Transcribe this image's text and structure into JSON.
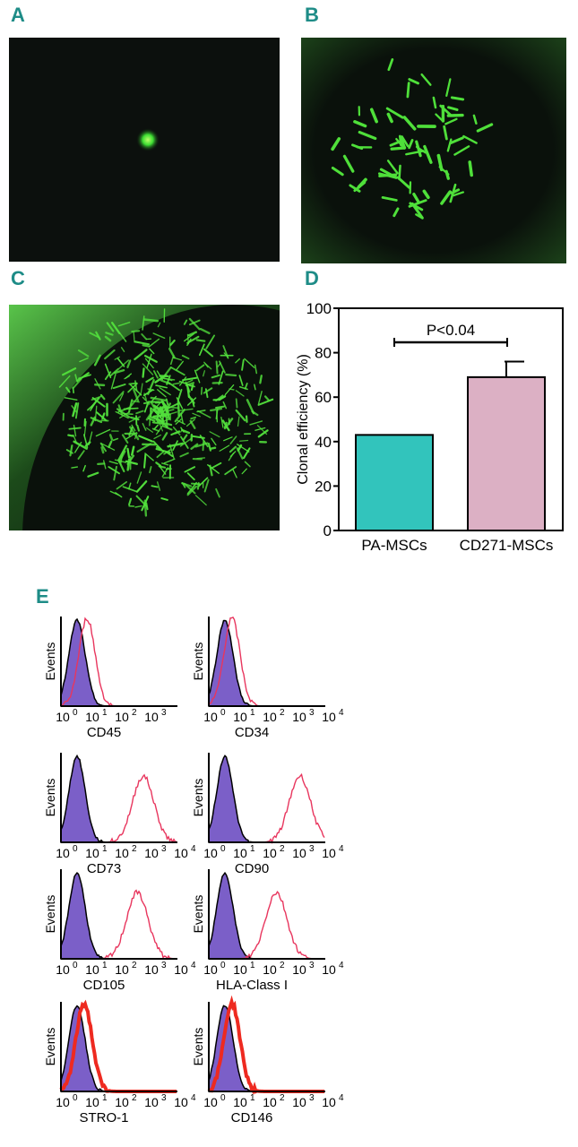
{
  "panels": {
    "a": {
      "label": "A"
    },
    "b": {
      "label": "B"
    },
    "c": {
      "label": "C"
    },
    "d": {
      "label": "D"
    },
    "e": {
      "label": "E"
    }
  },
  "colors": {
    "panel_label": "#1e8c87",
    "fluorescence": "#3cdc32",
    "bar_pa": "#32c4bc",
    "bar_cd271": "#dcb0c4",
    "isotype_fill": "#7b5fc8",
    "marker_line": "#e8365e",
    "marker_thick": "#ee2a20"
  },
  "chart_data": {
    "type": "bar",
    "categories": [
      "PA-MSCs",
      "CD271-MSCs"
    ],
    "values": [
      43,
      69
    ],
    "error": [
      0,
      7
    ],
    "ylabel": "Clonal efficiency (%)",
    "ylim": [
      0,
      100
    ],
    "yticks": [
      "0",
      "20",
      "40",
      "60",
      "80",
      "100"
    ],
    "annotation": "P<0.04"
  },
  "histograms": {
    "ylabel": "Events",
    "items": [
      {
        "marker": "CD45",
        "ticks": [
          "10",
          "10",
          "10",
          "10"
        ],
        "exps": [
          "0",
          "1",
          "2",
          "3"
        ],
        "peak_decade": 0.7,
        "positive": false
      },
      {
        "marker": "CD34",
        "ticks": [
          "10",
          "10",
          "10",
          "10",
          "10"
        ],
        "exps": [
          "0",
          "1",
          "2",
          "3",
          "4"
        ],
        "peak_decade": 0.6,
        "positive": false
      },
      {
        "marker": "CD73",
        "ticks": [
          "10",
          "10",
          "10",
          "10",
          "10"
        ],
        "exps": [
          "0",
          "1",
          "2",
          "3",
          "4"
        ],
        "peak_decade": 2.6,
        "positive": true
      },
      {
        "marker": "CD90",
        "ticks": [
          "10",
          "10",
          "10",
          "10",
          "10"
        ],
        "exps": [
          "0",
          "1",
          "2",
          "3",
          "4"
        ],
        "peak_decade": 2.9,
        "positive": true
      },
      {
        "marker": "CD105",
        "ticks": [
          "10",
          "10",
          "10",
          "10",
          "10"
        ],
        "exps": [
          "0",
          "1",
          "2",
          "3",
          "4"
        ],
        "peak_decade": 2.4,
        "positive": true
      },
      {
        "marker": "HLA-Class I",
        "ticks": [
          "10",
          "10",
          "10",
          "10",
          "10"
        ],
        "exps": [
          "0",
          "1",
          "2",
          "3",
          "4"
        ],
        "peak_decade": 2.1,
        "positive": true
      },
      {
        "marker": "STRO-1",
        "ticks": [
          "10",
          "10",
          "10",
          "10",
          "10"
        ],
        "exps": [
          "0",
          "1",
          "2",
          "3",
          "4"
        ],
        "peak_decade": 0.6,
        "positive": false,
        "thick": true
      },
      {
        "marker": "CD146",
        "ticks": [
          "10",
          "10",
          "10",
          "10",
          "10"
        ],
        "exps": [
          "0",
          "1",
          "2",
          "3",
          "4"
        ],
        "peak_decade": 0.6,
        "positive": false,
        "thick": true
      }
    ]
  }
}
